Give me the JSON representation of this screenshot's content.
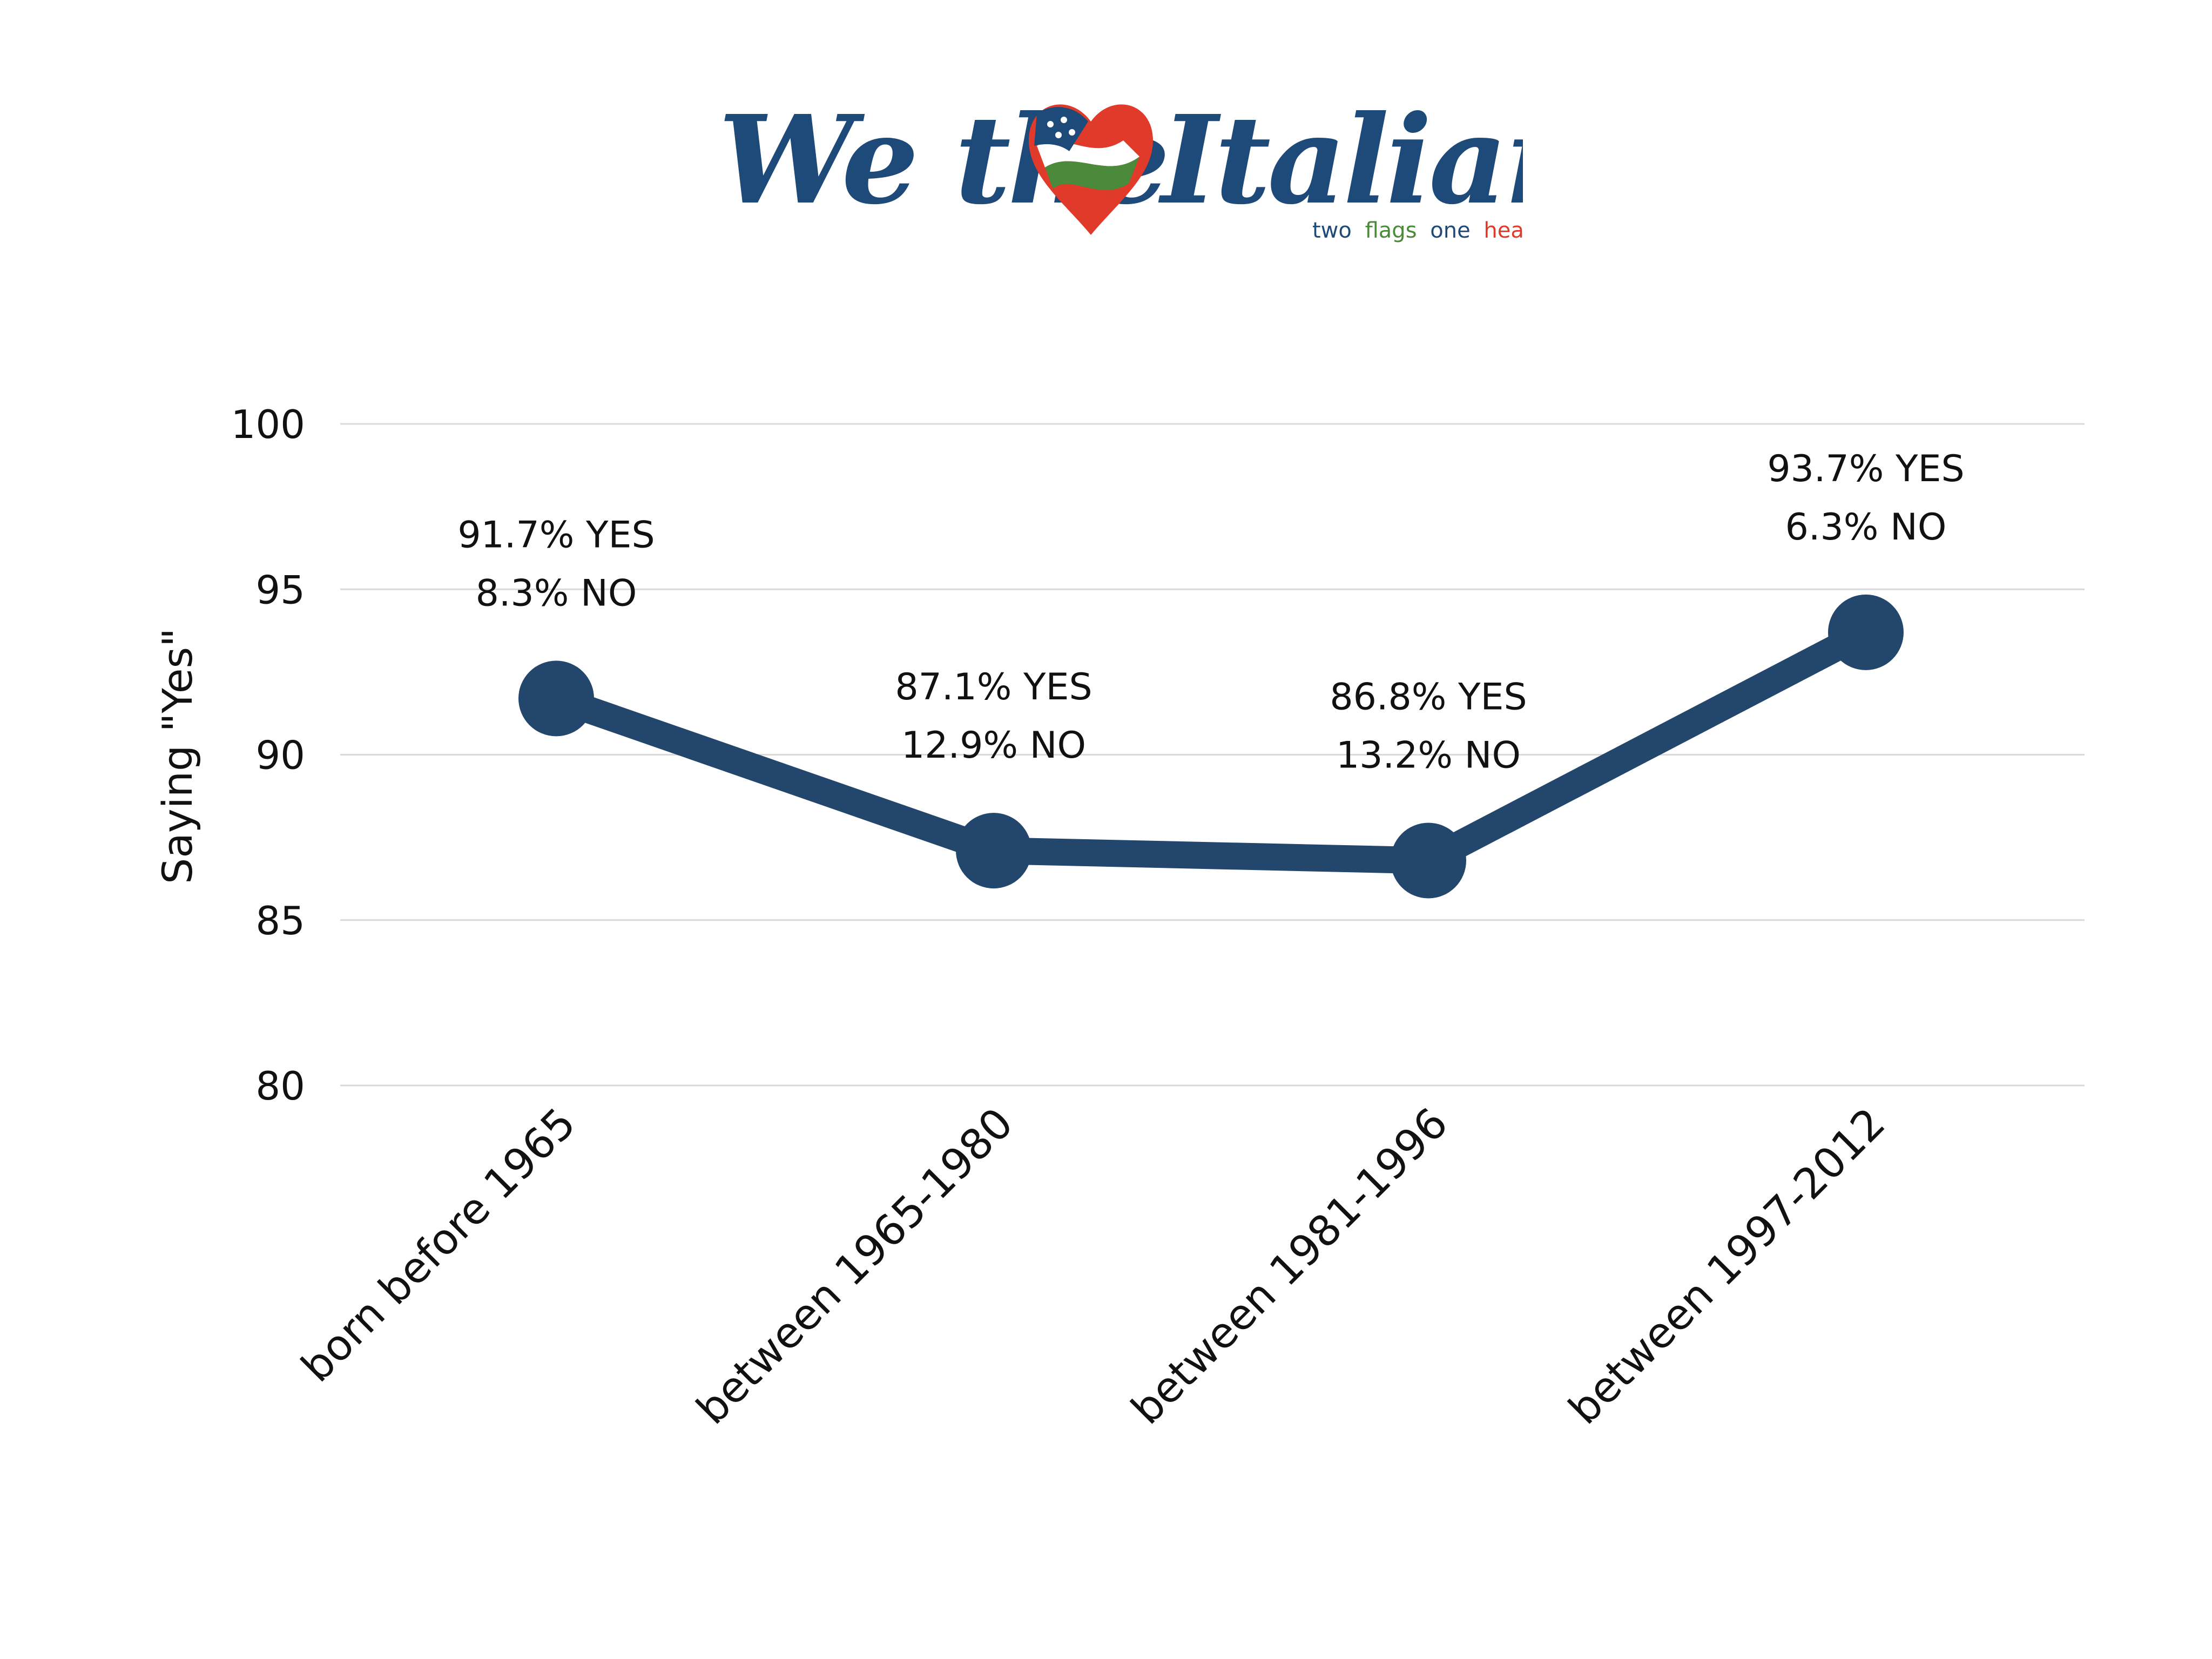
{
  "logo": {
    "name_part1": "We the",
    "name_part2": "Italians",
    "tagline_word1": "two",
    "tagline_word2": "flags",
    "tagline_word3": "one",
    "tagline_word4": "heart",
    "colors": {
      "navy": "#1e4a7a",
      "green": "#4a8a3a",
      "red": "#e03a2a"
    }
  },
  "chart_data": {
    "type": "line",
    "title": "",
    "xlabel": "",
    "ylabel": "Saying \"Yes\"",
    "categories": [
      "born before 1965",
      "between 1965-1980",
      "between 1981-1996",
      "between 1997-2012"
    ],
    "series": [
      {
        "values": [
          91.7,
          87.1,
          86.8,
          93.7
        ]
      }
    ],
    "data_labels": [
      {
        "yes": "91.7% YES",
        "no": "8.3% NO"
      },
      {
        "yes": "87.1% YES",
        "no": "12.9% NO"
      },
      {
        "yes": "86.8% YES",
        "no": "13.2% NO"
      },
      {
        "yes": "93.7% YES",
        "no": "6.3% NO"
      }
    ],
    "yticks": [
      80,
      85,
      90,
      95,
      100
    ],
    "ylim": [
      80,
      100
    ],
    "grid": true,
    "line_color": "#23466c"
  }
}
